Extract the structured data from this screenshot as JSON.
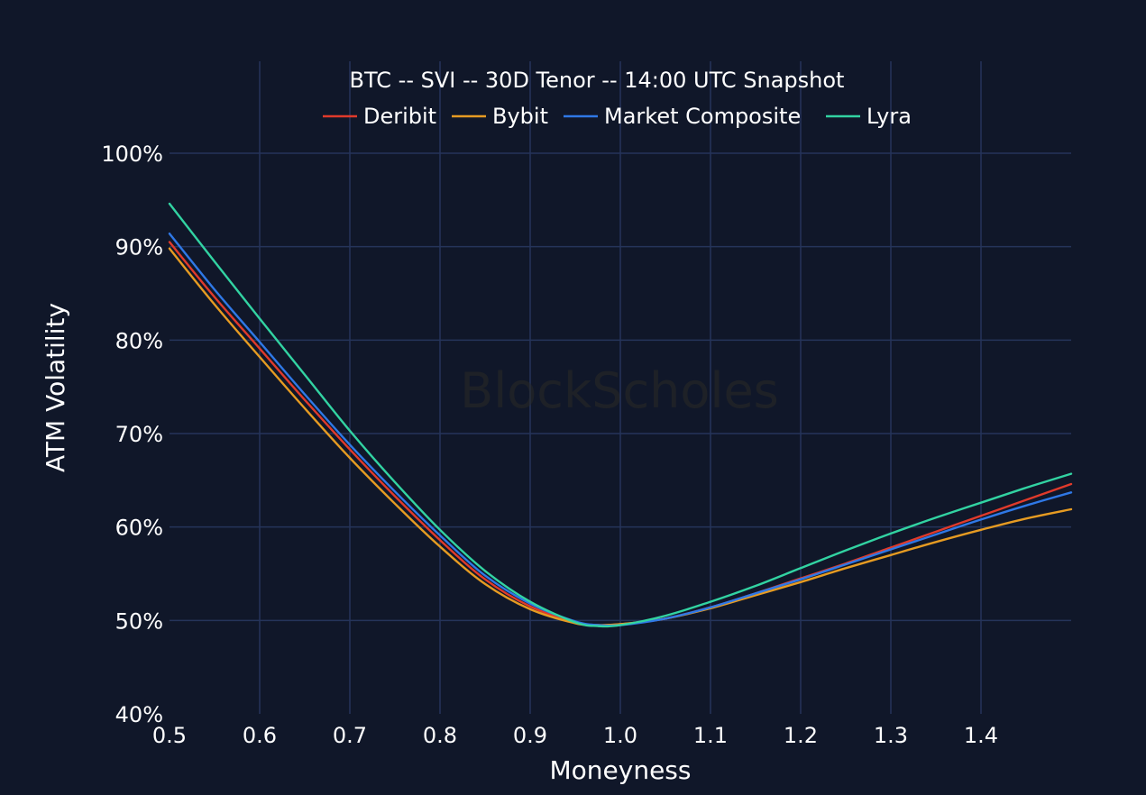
{
  "chart_data": {
    "type": "line",
    "title": "BTC -- SVI -- 30D Tenor -- 14:00 UTC Snapshot",
    "xlabel": "Moneyness",
    "ylabel": "ATM Volatility",
    "xlim": [
      0.5,
      1.5
    ],
    "ylim": [
      40,
      100
    ],
    "x_ticks": [
      "0.5",
      "0.6",
      "0.7",
      "0.8",
      "0.9",
      "1.0",
      "1.1",
      "1.2",
      "1.3",
      "1.4"
    ],
    "y_ticks": [
      "40%",
      "50%",
      "60%",
      "70%",
      "80%",
      "90%",
      "100%"
    ],
    "grid": true,
    "legend_position": "top-center",
    "watermark": "BlockScholes",
    "x": [
      0.5,
      0.55,
      0.6,
      0.65,
      0.7,
      0.75,
      0.8,
      0.85,
      0.9,
      0.95,
      0.975,
      1.0,
      1.05,
      1.1,
      1.15,
      1.2,
      1.25,
      1.3,
      1.35,
      1.4,
      1.45,
      1.5
    ],
    "series": [
      {
        "name": "Deribit",
        "color": "#e03a2b",
        "values": [
          90.5,
          84.6,
          79.1,
          73.6,
          68.3,
          63.3,
          58.6,
          54.4,
          51.5,
          49.8,
          49.5,
          49.6,
          50.2,
          51.4,
          52.9,
          54.5,
          56.1,
          57.8,
          59.5,
          61.2,
          62.9,
          64.6
        ]
      },
      {
        "name": "Bybit",
        "color": "#e69b22",
        "values": [
          89.8,
          83.8,
          78.2,
          72.7,
          67.4,
          62.5,
          57.9,
          53.9,
          51.2,
          49.7,
          49.5,
          49.6,
          50.2,
          51.3,
          52.7,
          54.1,
          55.6,
          57.0,
          58.4,
          59.7,
          60.9,
          61.9
        ]
      },
      {
        "name": "Market Composite",
        "color": "#2f78e6",
        "values": [
          91.4,
          85.4,
          79.8,
          74.2,
          68.8,
          63.8,
          59.1,
          54.8,
          51.8,
          49.9,
          49.5,
          49.5,
          50.2,
          51.4,
          52.9,
          54.4,
          56.0,
          57.6,
          59.2,
          60.8,
          62.3,
          63.7
        ]
      },
      {
        "name": "Lyra",
        "color": "#32d3a2",
        "values": [
          94.6,
          88.4,
          82.3,
          76.3,
          70.3,
          64.8,
          59.7,
          55.3,
          52.0,
          49.8,
          49.4,
          49.5,
          50.5,
          52.0,
          53.7,
          55.6,
          57.5,
          59.3,
          61.0,
          62.6,
          64.2,
          65.7
        ]
      }
    ]
  }
}
